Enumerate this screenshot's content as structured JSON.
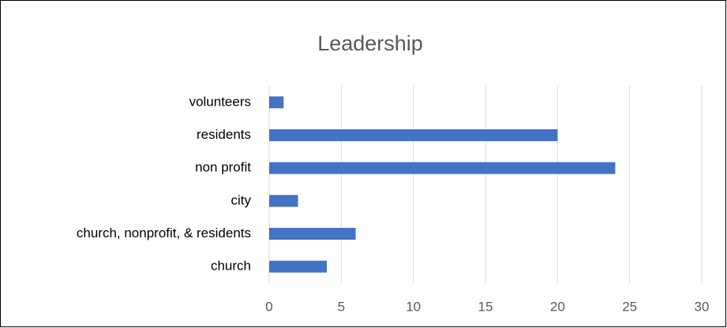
{
  "chart_data": {
    "type": "bar",
    "orientation": "horizontal",
    "title": "Leadership",
    "categories": [
      "volunteers",
      "residents",
      "non profit",
      "city",
      "church, nonprofit, & residents",
      "church"
    ],
    "values": [
      1,
      20,
      24,
      2,
      6,
      4
    ],
    "color": "#4472c4",
    "xlim": [
      0,
      30
    ],
    "xticks": [
      0,
      5,
      10,
      15,
      20,
      25,
      30
    ],
    "grid": true
  }
}
